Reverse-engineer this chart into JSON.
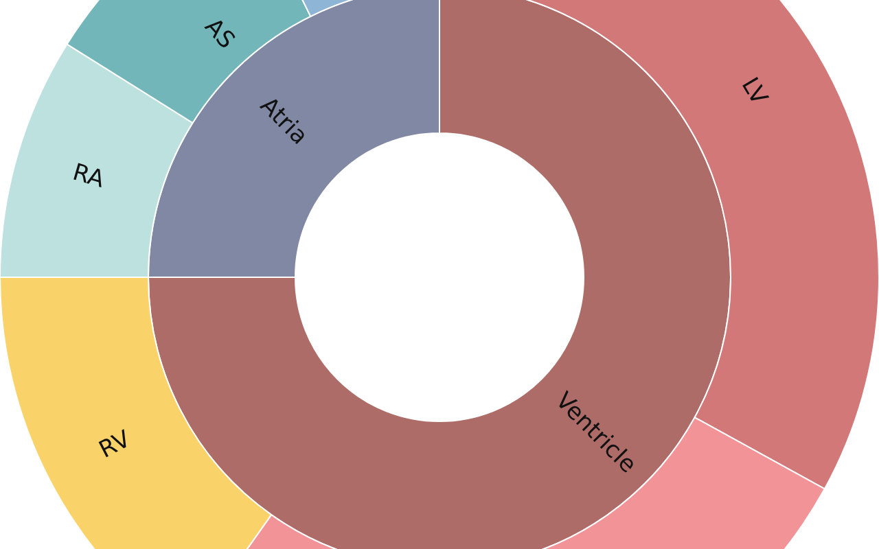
{
  "chart_data": [
    {
      "type": "donut",
      "categories": [
        "Ventricle",
        "Atria"
      ],
      "values": [
        75,
        25
      ],
      "colors": [
        "#ae6c68",
        "#8088a3"
      ]
    },
    {
      "type": "donut",
      "categories": [
        "LV",
        null,
        "RV",
        "RA",
        "AS",
        null
      ],
      "values": [
        33,
        26.8,
        15.2,
        8.9,
        8.8,
        7.3
      ],
      "colors": [
        "#d27878",
        "#f19397",
        "#f9d26a",
        "#bde1de",
        "#72b6b9",
        "#8fb5d6"
      ]
    }
  ]
}
